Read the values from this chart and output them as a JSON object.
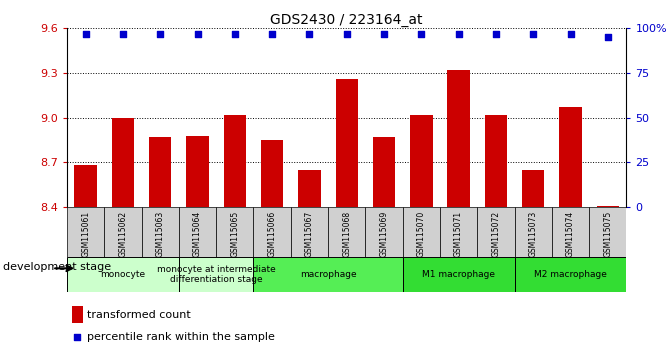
{
  "title": "GDS2430 / 223164_at",
  "samples": [
    "GSM115061",
    "GSM115062",
    "GSM115063",
    "GSM115064",
    "GSM115065",
    "GSM115066",
    "GSM115067",
    "GSM115068",
    "GSM115069",
    "GSM115070",
    "GSM115071",
    "GSM115072",
    "GSM115073",
    "GSM115074",
    "GSM115075"
  ],
  "bar_values": [
    8.68,
    9.0,
    8.87,
    8.88,
    9.02,
    8.85,
    8.65,
    9.26,
    8.87,
    9.02,
    9.32,
    9.02,
    8.65,
    9.07,
    8.41
  ],
  "percentile_values": [
    97,
    97,
    97,
    97,
    97,
    97,
    97,
    97,
    97,
    97,
    97,
    97,
    97,
    97,
    95
  ],
  "bar_color": "#cc0000",
  "dot_color": "#0000cc",
  "ylim_left": [
    8.4,
    9.6
  ],
  "ylim_right": [
    0,
    100
  ],
  "yticks_left": [
    8.4,
    8.7,
    9.0,
    9.3,
    9.6
  ],
  "yticks_right": [
    0,
    25,
    50,
    75,
    100
  ],
  "ytick_labels_right": [
    "0",
    "25",
    "50",
    "75",
    "100%"
  ],
  "groups_display": [
    {
      "label": "monocyte",
      "start": 0,
      "end": 3,
      "color": "#ccffcc"
    },
    {
      "label": "monocyte at intermediate\ndifferentiation stage",
      "start": 3,
      "end": 5,
      "color": "#ccffcc"
    },
    {
      "label": "macrophage",
      "start": 5,
      "end": 9,
      "color": "#55ee55"
    },
    {
      "label": "M1 macrophage",
      "start": 9,
      "end": 12,
      "color": "#33dd33"
    },
    {
      "label": "M2 macrophage",
      "start": 12,
      "end": 15,
      "color": "#33dd33"
    }
  ],
  "dev_stage_label": "development stage",
  "legend_bar_label": "transformed count",
  "legend_dot_label": "percentile rank within the sample",
  "tick_label_color_left": "#cc0000",
  "tick_label_color_right": "#0000cc",
  "label_bg_color": "#d0d0d0"
}
